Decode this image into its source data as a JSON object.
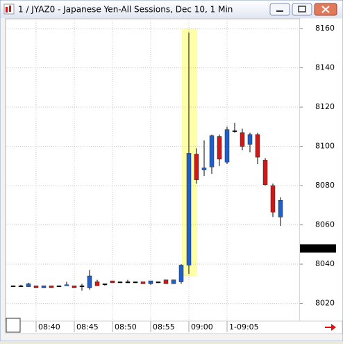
{
  "chart_data": {
    "type": "candlestick",
    "title": "1 / JYAZ0 - Japanese Yen-All Sessions, Dec 10, 1 Min",
    "categories": [
      null,
      null,
      null,
      "08:40",
      null,
      null,
      null,
      null,
      "08:45",
      null,
      null,
      null,
      null,
      "08:50",
      null,
      null,
      null,
      null,
      "08:55",
      null,
      null,
      null,
      null,
      "09:00",
      null,
      null,
      null,
      null,
      "1-09:05",
      null,
      null,
      null,
      null,
      null,
      null,
      null
    ],
    "open": [
      8029,
      8029,
      8028.5,
      8029,
      8028,
      8029,
      8029,
      8029,
      8029,
      8029,
      8028,
      8031,
      8030,
      8031.5,
      8031,
      8031,
      8031,
      8031,
      8030,
      8031,
      8032,
      8030,
      8031,
      8039.5,
      8096,
      8088,
      8089.5,
      8105,
      8092,
      8108,
      8107,
      8101,
      8106,
      8093,
      8080,
      8064
    ],
    "high": [
      8029,
      8029.5,
      8030.5,
      8029,
      8029,
      8029,
      8029,
      8031,
      8029,
      8030,
      8037,
      8032,
      8030,
      8031.5,
      8031,
      8032,
      8031,
      8031,
      8031.5,
      8031,
      8032,
      8032,
      8040,
      8158,
      8099,
      8103,
      8106,
      8106,
      8110,
      8112,
      8109,
      8107,
      8107,
      8094,
      8081,
      8074
    ],
    "low": [
      8029,
      8028.5,
      8028.5,
      8028,
      8028,
      8028,
      8029,
      8029,
      8028,
      8026.5,
      8027,
      8029,
      8029,
      8030.5,
      8031,
      8031,
      8031,
      8030,
      8029.5,
      8031,
      8030,
      8030,
      8030,
      8035,
      8081,
      8085,
      8086,
      8090,
      8091,
      8107,
      8098,
      8097,
      8091,
      8080,
      8064,
      8059.5
    ],
    "close": [
      8029,
      8029,
      8030,
      8028,
      8029,
      8028,
      8029,
      8029.5,
      8028,
      8029,
      8034,
      8029,
      8030,
      8030.5,
      8031,
      8031,
      8031,
      8030,
      8031.5,
      8031,
      8030,
      8032,
      8039.5,
      8096.5,
      8083,
      8089,
      8105.5,
      8093.5,
      8108.5,
      8108,
      8100,
      8106,
      8094.5,
      8080.5,
      8066.5,
      8072.5
    ],
    "up_color": "#1f5fcc",
    "down_color": "#d01818",
    "flat_color": "#000000",
    "ylim": [
      8011,
      8165
    ],
    "yticks": [
      8020,
      8040,
      8060,
      8080,
      8100,
      8120,
      8140,
      8160
    ],
    "last_price": 8048,
    "grid": true
  }
}
